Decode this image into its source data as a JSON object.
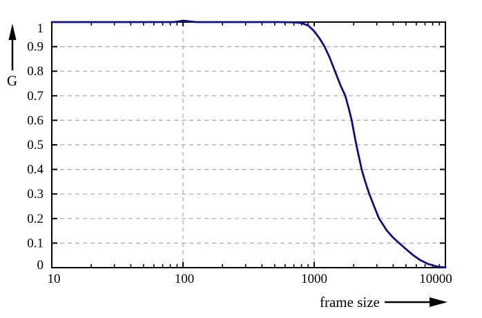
{
  "figure": {
    "colors": {
      "background": "#ffffff",
      "line": "#0d0d84",
      "grid": "#a6a6a6",
      "axis": "#000000",
      "text": "#000000"
    }
  },
  "chart_data": {
    "type": "line",
    "title": "",
    "xlabel": "frame size",
    "ylabel": "G",
    "x_scale": "log",
    "xlim": [
      10,
      10000
    ],
    "ylim": [
      0,
      1
    ],
    "grid": true,
    "legend": false,
    "x_ticks": [
      10,
      100,
      1000,
      10000
    ],
    "x_tick_labels": [
      "10",
      "100",
      "1000",
      "10000"
    ],
    "y_ticks": [
      0,
      0.1,
      0.2,
      0.3,
      0.4,
      0.5,
      0.6,
      0.7,
      0.8,
      0.9,
      1
    ],
    "y_tick_labels": [
      "0",
      "0.1",
      "0.2",
      "0.3",
      "0.4",
      "0.5",
      "0.6",
      "0.7",
      "0.8",
      "0.9",
      "1"
    ],
    "series": [
      {
        "name": "G",
        "color": "#0d0d84",
        "points": [
          [
            10,
            1.0
          ],
          [
            50,
            1.0
          ],
          [
            85,
            1.0
          ],
          [
            95,
            1.004
          ],
          [
            100,
            1.006
          ],
          [
            110,
            1.003
          ],
          [
            125,
            1.0
          ],
          [
            250,
            1.0
          ],
          [
            400,
            1.0
          ],
          [
            550,
            1.0
          ],
          [
            700,
            0.999
          ],
          [
            800,
            0.996
          ],
          [
            900,
            0.986
          ],
          [
            1000,
            0.963
          ],
          [
            1100,
            0.933
          ],
          [
            1200,
            0.9
          ],
          [
            1320,
            0.852
          ],
          [
            1440,
            0.8
          ],
          [
            1580,
            0.745
          ],
          [
            1725,
            0.7
          ],
          [
            1830,
            0.65
          ],
          [
            1930,
            0.6
          ],
          [
            2010,
            0.55
          ],
          [
            2095,
            0.5
          ],
          [
            2195,
            0.45
          ],
          [
            2300,
            0.4
          ],
          [
            2450,
            0.35
          ],
          [
            2630,
            0.3
          ],
          [
            2860,
            0.25
          ],
          [
            3120,
            0.2
          ],
          [
            3570,
            0.152
          ],
          [
            4000,
            0.122
          ],
          [
            4440,
            0.1
          ],
          [
            5100,
            0.072
          ],
          [
            5700,
            0.05
          ],
          [
            6460,
            0.03
          ],
          [
            7380,
            0.015
          ],
          [
            8580,
            0.005
          ],
          [
            9300,
            0.002
          ],
          [
            10000,
            0.001
          ]
        ]
      }
    ]
  }
}
